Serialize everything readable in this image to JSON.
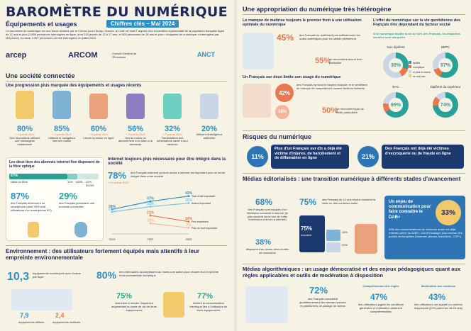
{
  "header": {
    "title": "BAROMÈTRE DU NUMÉRIQUE",
    "subtitle": "Équipements et usages",
    "edition": "Chiffres clés – Mai 2024",
    "intro": "Le baromètre du numérique est une étude réalisée par le Crédoc pour l'Arcep, l'Arcom, le CGE et l'ANCT auprès d'un échantillon représentatif de la population française âgée de 12 ans et plus (3 656 personnes interrogées en ligne, dont 218 jeunes de 12 à 17 ans, et 500 personnes de 18 ans et plus « éloignées du numérique » interrogées par téléphone). Au total, 4 357 personnes ont été interrogées en juillet 2023.",
    "logos": [
      "arcep",
      "ARCOM",
      "Conseil Général de l'Économie",
      "ANCT"
    ]
  },
  "s1": {
    "title": "Une société connectée",
    "sub": "Une progression plus marquée des équipements et usages récents",
    "stats": [
      {
        "value": "80%",
        "delta": "+ 3 points 2022",
        "label": "Des répondants utilisent une messagerie instantanée"
      },
      {
        "value": "85%",
        "delta": "+ 2 points 2022",
        "label": "Utilisent le navigateur internet mobile"
      },
      {
        "value": "60%",
        "delta": "+ 5 points 2022",
        "label": "Lisent la presse en ligne"
      },
      {
        "value": "56%",
        "delta": "+ 3 points 2022",
        "label": "Ont au moins un abonnement à la vidéo à la demande"
      },
      {
        "value": "32%",
        "delta": "+ 7 points 2022",
        "label": "Transmettent des informations santé à leur médecin"
      },
      {
        "value": "20%",
        "delta": "",
        "label": "Utilisent l'intelligence artificielle"
      }
    ],
    "fiber": {
      "title": "Les deux tiers des abonnés internet fixe disposent de la fibre optique",
      "fibre_pct": "67%",
      "fibre_label": "câble ou fibre",
      "adsl_pct": "11%",
      "adsl_label": "ADSL",
      "other_pct": "22%",
      "other_label": "4G/5G",
      "p1": "87%",
      "p1_label": "des Français détiennent un smartphone (dont 95% sont utilisateurs d'un smartphone 5G)",
      "p2": "29%",
      "p2_label": "des Français possèdent une enceinte connectée"
    },
    "chart": {
      "title": "Internet toujours plus nécessaire pour être intégré dans la société",
      "lead_value": "78%",
      "lead_text": "des Français estiment qu'avoir accès à internet est important pour se sentir intégré dans notre société",
      "lead_delta": "+ 10 points 2022"
    }
  },
  "s2": {
    "title": "Environnement : des utilisateurs fortement équipés mais attentifs à leur empreinte environnementale",
    "eq_value": "10,3",
    "eq_label": "équipements numériques avec écrans par foyer",
    "eq2_value": "7,9",
    "eq2_label": "équipements utilisés",
    "eq3_value": "2,4",
    "eq3_label": "équipements inutilisés",
    "act_value": "80%",
    "act_label": "des internautes accomplissent au moins une action pour réduire leur empreinte environnementale numérique",
    "a1": "75%",
    "a1_label": "cherchent à réduire l'impact en augmentant la durée de vie de leurs équipements",
    "a2": "77%",
    "a2_label": "limitent la consommation électrique liée à l'utilisation de leurs équipements"
  },
  "r1": {
    "title": "Une appropriation du numérique très hétérogène",
    "sub1": "Le manque de maîtrise toujours le premier frein à une utilisation optimale du numérique",
    "a_value": "45%",
    "a_label": "des Français ne maîtrisent pas suffisamment les outils numériques pour les utiliser pleinement",
    "a2_value": "55%",
    "a2_label": "ne rencontrent aucun frein particulier",
    "sub2": "Un Français sur deux limite son usage du numérique",
    "b_value": "42%",
    "b_label": "des Français éprouvent l'aspect financier et le sentiment de manque de compétences comme facteurs limitants",
    "b2_value": "50%",
    "b2_label": "ne rencontrent pas de limite particulière",
    "b3_value": "18%",
    "b3_label": "4%",
    "sub3": "L'effet du numérique sur la vie quotidienne des Français très dépendant du facteur social",
    "sub3b": "Si le numérique facilite la vie de 63% des Français, les disparités sociales sont marquées",
    "donuts": [
      {
        "name": "Non diplômé",
        "value": "30%"
      },
      {
        "name": "BEPC",
        "value": "57%"
      },
      {
        "name": "BAC",
        "value": "65%"
      },
      {
        "name": "Diplômé du supérieur",
        "value": "74%"
      }
    ],
    "legend": [
      "facilite",
      "complique",
      "ni plus ni moins",
      "ne sait pas"
    ]
  },
  "r2": {
    "title": "Risques du numérique",
    "c1_value": "11%",
    "c1_label": "Plus d'un Français sur dix a déjà été victime d'injures, de harcèlement et de diffamation en ligne",
    "c2_value": "21%",
    "c2_label": "Des Français ont déjà été victimes d'escroquerie ou de fraude en ligne"
  },
  "r3": {
    "title": "Médias éditorialisés : une transition numérique à différents stades d'avancement",
    "m1": "68%",
    "m1_label": "des Français sont équipés d'un téléviseur connecté à internet (le plus souvent via la box de l'offre fournisseur d'accès à internet)",
    "m2": "38%",
    "m2_label": "disposent d'au moins deux modes de connexion",
    "m3": "75%",
    "m3_label": "des Français de 12 ans et plus écoutent la radio ou des contenus audio",
    "m4": "75%",
    "m4_label": "écoutent",
    "m5": "18%",
    "m6": "20%",
    "c_label": "Un enjeu de communication pour faire connaître le DAB+",
    "c_value": "33%",
    "c_text": "33% des consommateurs de contenus audio ont déjà entendu parler du DAB+, une technologie plus connue des publics technophiles (hommes, jeunes, franciliens, CSP+)"
  },
  "r4": {
    "title": "Médias algorithmiques : un usage démocratisé et des enjeux pédagogiques quant aux règles applicables et outils de modération à disposition",
    "v1": "72%",
    "v1_label": "des Français consultent quotidiennement les réseaux sociaux et plateformes de partage de vidéos",
    "col1_title": "Compréhension des règles",
    "v2": "47%",
    "v2_label": "des utilisateurs jugent les conditions générales et d'utilisation aisément compréhensibles",
    "col2_title": "Modération des contenus",
    "v3": "43%",
    "v3_label": "des utilisateurs ont signalé un contenu inapproprié (24% parmi les 18-24 ans)"
  },
  "chart_data": {
    "type": "line",
    "title": "Internet toujours plus nécessaire pour être intégré dans la société",
    "x": [
      "2019",
      "2021",
      "2023"
    ],
    "series": [
      {
        "name": "Tout à fait important",
        "values": [
          28,
          37,
          43
        ]
      },
      {
        "name": "Assez important",
        "values": [
          25,
          31,
          35
        ]
      },
      {
        "name": "Peu important",
        "values": [
          null,
          21,
          14
        ]
      },
      {
        "name": "Pas du tout important",
        "values": [
          null,
          12,
          7
        ]
      }
    ],
    "ylim": [
      0,
      50
    ]
  },
  "colors": {
    "navy": "#1d2a5c",
    "blue": "#2e8fc4",
    "teal": "#2aa198",
    "orange": "#e9774f",
    "cream": "#f6f2e4"
  }
}
